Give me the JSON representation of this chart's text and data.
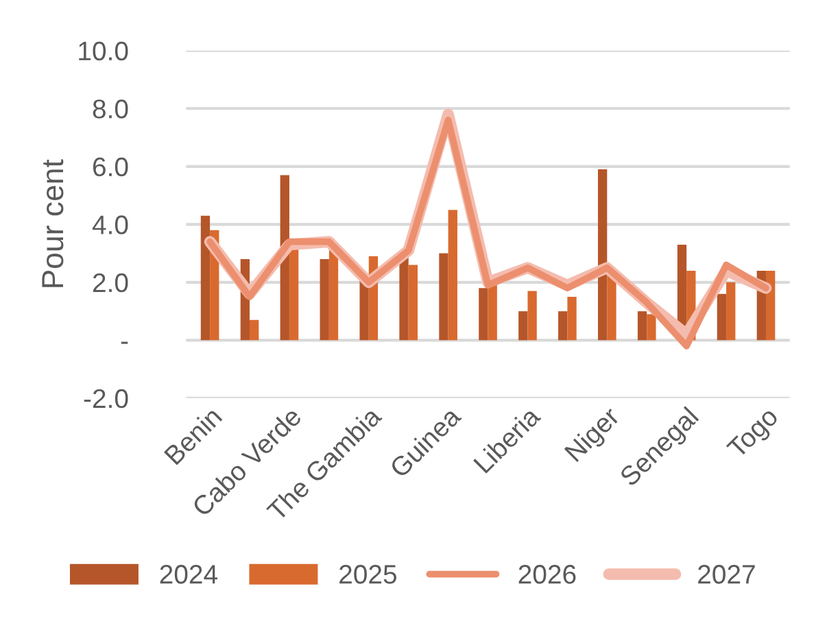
{
  "chart_data": {
    "type": "bar",
    "ylabel": "Pour cent",
    "categories": [
      "Benin",
      null,
      "Cabo Verde",
      null,
      "The Gambia",
      null,
      "Guinea",
      null,
      "Liberia",
      null,
      "Niger",
      null,
      "Senegal",
      null,
      "Togo"
    ],
    "series": [
      {
        "name": "2024",
        "color": "#b5562a",
        "values": [
          4.3,
          2.8,
          5.7,
          2.8,
          2.2,
          2.9,
          3.0,
          1.8,
          1.0,
          1.0,
          5.9,
          1.0,
          3.3,
          1.6,
          2.4
        ]
      },
      {
        "name": "2025",
        "color": "#d96a2f",
        "values": [
          3.8,
          0.7,
          3.2,
          3.2,
          2.9,
          2.6,
          4.5,
          1.9,
          1.7,
          1.5,
          2.4,
          0.9,
          2.4,
          2.0,
          2.4
        ]
      },
      {
        "name": "2026",
        "type": "line",
        "color": "#ec8f6e",
        "values": [
          3.4,
          1.5,
          3.4,
          3.4,
          2.0,
          3.1,
          7.6,
          1.9,
          2.5,
          1.8,
          2.5,
          1.3,
          -0.2,
          2.6,
          1.8
        ]
      },
      {
        "name": "2027",
        "type": "line",
        "color": "#f4bcae",
        "values": [
          3.4,
          1.6,
          3.3,
          3.4,
          2.0,
          3.1,
          7.8,
          2.0,
          2.5,
          1.9,
          2.5,
          1.3,
          0.2,
          2.4,
          1.8
        ]
      }
    ],
    "ylim": [
      -2,
      10
    ],
    "yticks": [
      {
        "value": -2,
        "label": "-2.0"
      },
      {
        "value": 0,
        "label": "-"
      },
      {
        "value": 2,
        "label": "2.0"
      },
      {
        "value": 4,
        "label": "4.0"
      },
      {
        "value": 6,
        "label": "6.0"
      },
      {
        "value": 8,
        "label": "8.0"
      },
      {
        "value": 10,
        "label": "10.0"
      }
    ],
    "grid": "y",
    "legend": "bottom"
  }
}
